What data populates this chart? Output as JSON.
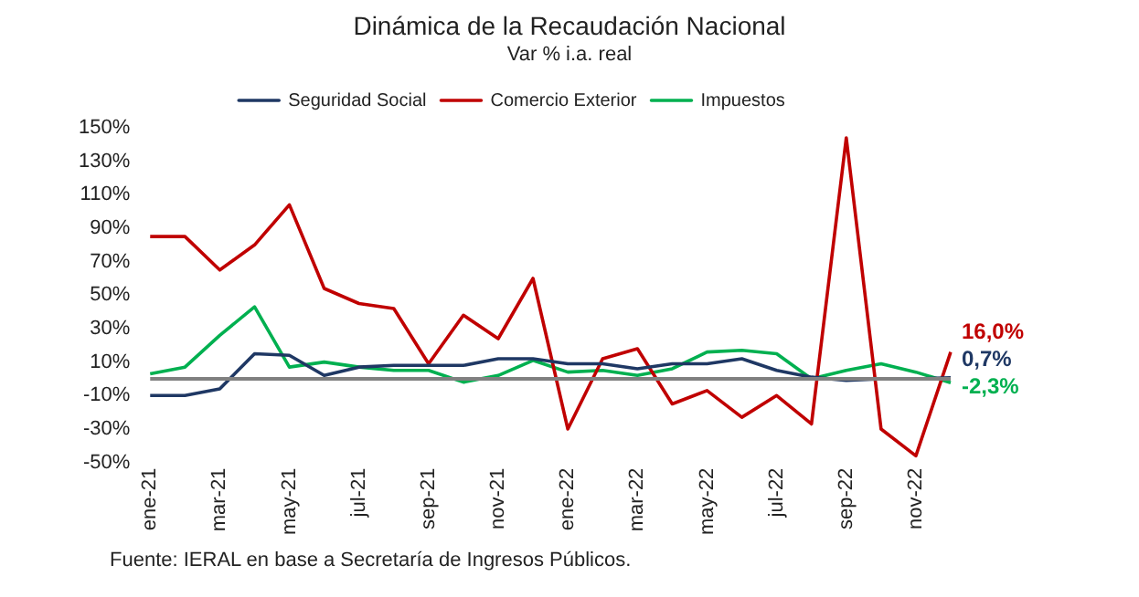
{
  "chart_data": {
    "type": "line",
    "title": "Dinámica de la Recaudación Nacional",
    "subtitle": "Var % i.a. real",
    "categories": [
      "ene-21",
      null,
      "mar-21",
      null,
      "may-21",
      null,
      "jul-21",
      null,
      "sep-21",
      null,
      "nov-21",
      null,
      "ene-22",
      null,
      "mar-22",
      null,
      "may-22",
      null,
      "jul-22",
      null,
      "sep-22",
      null,
      "nov-22",
      null
    ],
    "series": [
      {
        "name": "Seguridad Social",
        "color": "#1f3864",
        "values": [
          -10,
          -10,
          -6,
          15,
          14,
          2,
          7,
          8,
          8,
          8,
          12,
          12,
          9,
          9,
          6,
          9,
          9,
          12,
          5,
          1,
          -1,
          0,
          0,
          0.7
        ],
        "value_labels": [
          null,
          null,
          null,
          null,
          null,
          null,
          null,
          null,
          null,
          null,
          null,
          null,
          null,
          null,
          null,
          null,
          null,
          null,
          null,
          null,
          null,
          null,
          null,
          "0,7%"
        ]
      },
      {
        "name": "Comercio Exterior",
        "color": "#c00000",
        "values": [
          85,
          85,
          65,
          80,
          104,
          54,
          45,
          42,
          9,
          38,
          24,
          60,
          -30,
          12,
          18,
          -15,
          -7,
          -23,
          -10,
          -27,
          144,
          -30,
          -46,
          16.0
        ],
        "value_labels": [
          null,
          null,
          null,
          null,
          null,
          null,
          null,
          null,
          null,
          null,
          null,
          null,
          null,
          null,
          null,
          null,
          null,
          null,
          null,
          null,
          null,
          null,
          null,
          "16,0%"
        ]
      },
      {
        "name": "Impuestos",
        "color": "#00b050",
        "values": [
          3,
          7,
          26,
          43,
          7,
          10,
          7,
          5,
          5,
          -2,
          2,
          11,
          4,
          5,
          2,
          6,
          16,
          17,
          15,
          0,
          5,
          9,
          4,
          -2.3
        ],
        "value_labels": [
          null,
          null,
          null,
          null,
          null,
          null,
          null,
          null,
          null,
          null,
          null,
          null,
          null,
          null,
          null,
          null,
          null,
          null,
          null,
          null,
          null,
          null,
          null,
          "-2,3%"
        ]
      }
    ],
    "ylim": [
      -50,
      150
    ],
    "yticks": [
      {
        "value": -50,
        "label": "-50%"
      },
      {
        "value": -30,
        "label": "-30%"
      },
      {
        "value": -10,
        "label": "-10%"
      },
      {
        "value": 10,
        "label": "10%"
      },
      {
        "value": 30,
        "label": "30%"
      },
      {
        "value": 50,
        "label": "50%"
      },
      {
        "value": 70,
        "label": "70%"
      },
      {
        "value": 90,
        "label": "90%"
      },
      {
        "value": 110,
        "label": "110%"
      },
      {
        "value": 130,
        "label": "130%"
      },
      {
        "value": 150,
        "label": "150%"
      }
    ],
    "ref_lines": [
      {
        "axis": "y",
        "value": 0,
        "color": "#808080"
      }
    ],
    "legend": "top",
    "grid": false,
    "marker": "none",
    "line_style": "solid",
    "annotations": [
      "Fuente: IERAL en base a Secretaría de Ingresos Públicos."
    ]
  }
}
